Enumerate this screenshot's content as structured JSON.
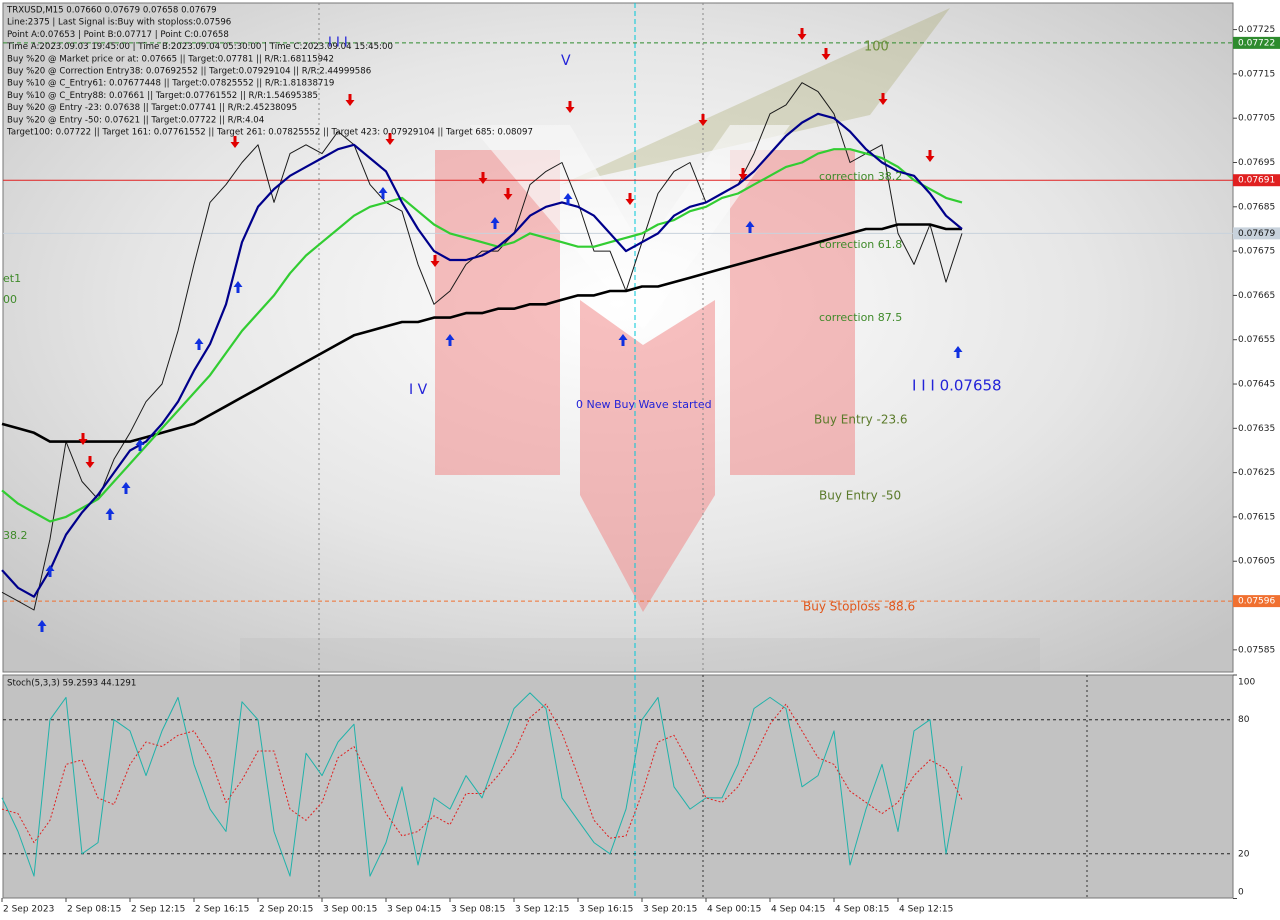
{
  "chart_data": [
    {
      "type": "line",
      "info_lines": [
        "TRXUSD,M15  0.07660 0.07679 0.07658 0.07679",
        "Line:2375 | Last Signal is:Buy with stoploss:0.07596",
        "Point A:0.07653 | Point B:0.07717 | Point C:0.07658",
        "Time A:2023.09.03 19:45:00 | Time B:2023.09.04 05:30:00 | Time C:2023.09.04 15:45:00",
        "Buy %20 @ Market price or at: 0.07665 || Target:0.07781 || R/R:1.68115942",
        "Buy %20 @ Correction Entry38: 0.07692552 || Target:0.07929104 || R/R:2.44999586",
        "Buy %10 @ C_Entry61: 0.07677448 || Target:0.07825552 || R/R:1.81838719",
        "Buy %10 @ C_Entry88: 0.07661 || Target:0.07761552 || R/R:1.54695385",
        "Buy %20 @ Entry -23: 0.07638 || Target:0.07741 || R/R:2.45238095",
        "Buy %20 @ Entry -50: 0.07621 || Target:0.07722 || R/R:4.04",
        "Target100: 0.07722 || Target 161: 0.07761552 || Target 261: 0.07825552 || Target 423: 0.07929104 || Target 685: 0.08097"
      ],
      "categories": [
        "2 Sep 2023",
        null,
        null,
        null,
        "2 Sep 08:15",
        null,
        null,
        null,
        "2 Sep 12:15",
        null,
        null,
        null,
        "2 Sep 16:15",
        null,
        null,
        null,
        "2 Sep 20:15",
        null,
        null,
        null,
        "3 Sep 00:15",
        null,
        null,
        null,
        "3 Sep 04:15",
        null,
        null,
        null,
        "3 Sep 08:15",
        null,
        null,
        null,
        "3 Sep 12:15",
        null,
        null,
        null,
        "3 Sep 16:15",
        null,
        null,
        null,
        "3 Sep 20:15",
        null,
        null,
        null,
        "4 Sep 00:15",
        null,
        null,
        null,
        "4 Sep 04:15",
        null,
        null,
        null,
        "4 Sep 08:15",
        null,
        null,
        null,
        "4 Sep 12:15",
        null,
        null,
        null,
        null
      ],
      "series": [
        {
          "color": "#1a1a1a",
          "values": [
            0.07598,
            0.07596,
            0.07594,
            0.0761,
            0.07632,
            0.07623,
            0.07619,
            0.07628,
            0.07634,
            0.07641,
            0.07645,
            0.07657,
            0.07672,
            0.07686,
            0.0769,
            0.07695,
            0.07699,
            0.07686,
            0.07697,
            0.07699,
            0.07697,
            0.07702,
            0.07699,
            0.0769,
            0.07686,
            0.07684,
            0.07672,
            0.07663,
            0.07666,
            0.07672,
            0.07675,
            0.07675,
            0.07679,
            0.0769,
            0.07693,
            0.07695,
            0.07686,
            0.07675,
            0.07675,
            0.07666,
            0.07677,
            0.07688,
            0.07693,
            0.07695,
            0.07686,
            0.07688,
            0.0769,
            0.07697,
            0.07706,
            0.07708,
            0.07713,
            0.07711,
            0.07706,
            0.07695,
            0.07697,
            0.07699,
            0.07679,
            0.07672,
            0.07681,
            0.07668,
            0.07679
          ]
        },
        {
          "color": "#000000",
          "values": [
            0.07636,
            0.07635,
            0.07634,
            0.07632,
            0.07632,
            0.07632,
            0.07632,
            0.07632,
            0.07632,
            0.07633,
            0.07634,
            0.07635,
            0.07636,
            0.07638,
            0.0764,
            0.07642,
            0.07644,
            0.07646,
            0.07648,
            0.0765,
            0.07652,
            0.07654,
            0.07656,
            0.07657,
            0.07658,
            0.07659,
            0.07659,
            0.0766,
            0.0766,
            0.07661,
            0.07661,
            0.07662,
            0.07662,
            0.07663,
            0.07663,
            0.07664,
            0.07665,
            0.07665,
            0.07666,
            0.07666,
            0.07667,
            0.07667,
            0.07668,
            0.07669,
            0.0767,
            0.07671,
            0.07672,
            0.07673,
            0.07674,
            0.07675,
            0.07676,
            0.07677,
            0.07678,
            0.07679,
            0.0768,
            0.0768,
            0.07681,
            0.07681,
            0.07681,
            0.0768,
            0.0768
          ]
        },
        {
          "color": "#32cd32",
          "values": [
            0.07621,
            0.07618,
            0.07616,
            0.07614,
            0.07615,
            0.07617,
            0.07619,
            0.07623,
            0.07627,
            0.07631,
            0.07635,
            0.07639,
            0.07643,
            0.07647,
            0.07652,
            0.07657,
            0.07661,
            0.07665,
            0.0767,
            0.07674,
            0.07677,
            0.0768,
            0.07683,
            0.07685,
            0.07686,
            0.07687,
            0.07684,
            0.07681,
            0.07679,
            0.07678,
            0.07677,
            0.07676,
            0.07677,
            0.07679,
            0.07678,
            0.07677,
            0.07676,
            0.07676,
            0.07677,
            0.07678,
            0.07679,
            0.07681,
            0.07682,
            0.07684,
            0.07685,
            0.07687,
            0.07688,
            0.0769,
            0.07692,
            0.07694,
            0.07695,
            0.07697,
            0.07698,
            0.07698,
            0.07697,
            0.07696,
            0.07694,
            0.07691,
            0.07689,
            0.07687,
            0.07686
          ]
        },
        {
          "color": "#00008b",
          "values": [
            0.07603,
            0.07599,
            0.07597,
            0.07603,
            0.07611,
            0.07616,
            0.0762,
            0.07625,
            0.0763,
            0.07632,
            0.07636,
            0.07641,
            0.07648,
            0.07654,
            0.07663,
            0.07677,
            0.07685,
            0.07689,
            0.07692,
            0.07694,
            0.07696,
            0.07698,
            0.07699,
            0.07696,
            0.07693,
            0.07686,
            0.0768,
            0.07675,
            0.07673,
            0.07673,
            0.07674,
            0.07676,
            0.07679,
            0.07683,
            0.07685,
            0.07686,
            0.07685,
            0.07683,
            0.07679,
            0.07675,
            0.07677,
            0.07679,
            0.07683,
            0.07685,
            0.07686,
            0.07688,
            0.0769,
            0.07693,
            0.07697,
            0.07701,
            0.07704,
            0.07706,
            0.07705,
            0.07702,
            0.07698,
            0.07695,
            0.07693,
            0.07692,
            0.07688,
            0.07683,
            0.0768
          ]
        }
      ],
      "ylim": [
        0.0758,
        0.07731
      ],
      "yticks": [
        0.07725,
        0.07715,
        0.07705,
        0.07695,
        0.07685,
        0.07675,
        0.07665,
        0.07655,
        0.07645,
        0.07635,
        0.07625,
        0.07615,
        0.07605,
        0.07585
      ],
      "levels": [
        {
          "value": 0.07722,
          "color": "#2e8b2e"
        },
        {
          "value": 0.07691,
          "color": "#e02020"
        },
        {
          "value": 0.07679,
          "color": "#c8d2dc"
        },
        {
          "value": 0.07596,
          "color": "#f07030"
        }
      ],
      "annotations": [
        {
          "text": "100",
          "color": "#6b8e3a"
        },
        {
          "text": "correction 38.2",
          "color": "#3f8a2a"
        },
        {
          "text": "correction 61.8",
          "color": "#3f8a2a"
        },
        {
          "text": "correction 87.5",
          "color": "#3f8a2a"
        },
        {
          "text": "I I I 0.07658",
          "color": "#2323d8"
        },
        {
          "text": "Buy Entry -23.6",
          "color": "#5a7a2a"
        },
        {
          "text": "Buy Entry -50",
          "color": "#5a7a2a"
        },
        {
          "text": "Buy Stoploss -88.6",
          "color": "#e0561b"
        },
        {
          "text": "0 New Buy Wave started",
          "color": "#2323d8"
        },
        {
          "text": "I V",
          "color": "#2323d8"
        },
        {
          "text": "V",
          "color": "#2323d8"
        },
        {
          "text": "I I I",
          "color": "#2323d8"
        },
        {
          "text": "et1",
          "color": "#3f8a2a"
        },
        {
          "text": "00",
          "color": "#3f8a2a"
        },
        {
          "text": "38.2",
          "color": "#3f8a2a"
        }
      ]
    },
    {
      "type": "line",
      "title": "Stoch(5,3,3) 59.2593 44.1291",
      "series": [
        {
          "color": "#20b2aa",
          "values": [
            45,
            30,
            10,
            80,
            90,
            20,
            25,
            80,
            75,
            55,
            75,
            90,
            60,
            40,
            30,
            88,
            80,
            30,
            10,
            65,
            55,
            70,
            78,
            10,
            25,
            50,
            15,
            45,
            40,
            55,
            45,
            65,
            85,
            92,
            85,
            45,
            35,
            25,
            20,
            40,
            80,
            90,
            50,
            40,
            45,
            45,
            60,
            85,
            90,
            85,
            50,
            55,
            75,
            15,
            40,
            60,
            30,
            75,
            80,
            20,
            59.2593
          ]
        },
        {
          "color": "#e02020",
          "values": [
            40,
            38,
            25,
            35,
            60,
            62,
            45,
            42,
            60,
            70,
            68,
            73,
            75,
            63,
            43,
            53,
            66,
            66,
            40,
            35,
            43,
            63,
            68,
            53,
            38,
            28,
            30,
            37,
            33,
            47,
            47,
            55,
            65,
            81,
            87,
            74,
            55,
            35,
            27,
            28,
            47,
            70,
            73,
            60,
            45,
            43,
            50,
            63,
            78,
            87,
            75,
            63,
            60,
            48,
            43,
            38,
            43,
            55,
            62,
            58,
            44.1291
          ]
        }
      ],
      "ylim": [
        0,
        100
      ],
      "yticks": [
        100,
        80,
        20,
        0
      ]
    }
  ]
}
